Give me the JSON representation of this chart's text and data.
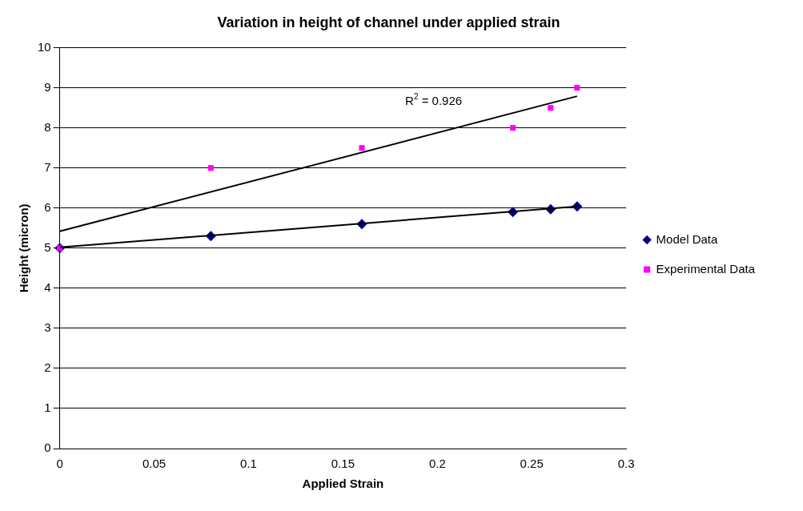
{
  "chart_data": {
    "type": "scatter",
    "title": "Variation in height of channel under applied strain",
    "xlabel": "Applied Strain",
    "ylabel": "Height (micron)",
    "series": [
      {
        "name": "Model Data",
        "type": "scatter",
        "color": "#000080",
        "marker": "diamond",
        "x": [
          0,
          0.08,
          0.16,
          0.24,
          0.26,
          0.274
        ],
        "values": [
          5,
          5.3,
          5.6,
          5.9,
          5.97,
          6.04
        ]
      },
      {
        "name": "Experimental Data",
        "type": "scatter",
        "color": "#ff00ff",
        "marker": "square",
        "x": [
          0,
          0.08,
          0.16,
          0.24,
          0.26,
          0.274
        ],
        "values": [
          5,
          7,
          7.5,
          8,
          8.5,
          9
        ]
      },
      {
        "type": "line",
        "color": "#000000",
        "marker": "none",
        "x": [
          0,
          0.274
        ],
        "values": [
          5.02,
          6.04
        ]
      },
      {
        "type": "line",
        "color": "#000000",
        "marker": "none",
        "x": [
          0,
          0.274
        ],
        "values": [
          5.42,
          8.79
        ]
      }
    ],
    "annotations": [
      "R$^{2}$ = 0.926"
    ],
    "xlim": [
      0,
      0.3
    ],
    "xticks": [
      0,
      0.05,
      0.1,
      0.15,
      0.2,
      0.25,
      0.3
    ],
    "ylim": [
      0,
      10
    ],
    "yticks": [
      0,
      1,
      2,
      3,
      4,
      5,
      6,
      7,
      8,
      9,
      10
    ],
    "grid": "y",
    "legend": "right"
  }
}
